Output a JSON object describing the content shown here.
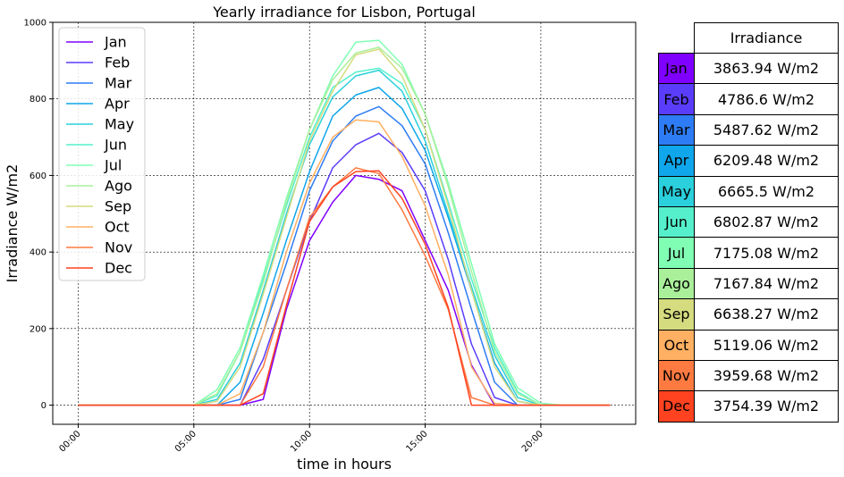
{
  "chart_data": {
    "type": "line",
    "title": "Yearly irradiance for Lisbon, Portugal",
    "xlabel": "time in hours",
    "ylabel": "Irradiance W/m2",
    "x": [
      0,
      1,
      2,
      3,
      4,
      5,
      6,
      7,
      8,
      9,
      10,
      11,
      12,
      13,
      14,
      15,
      16,
      17,
      18,
      19,
      20,
      21,
      22,
      23
    ],
    "xticks": [
      0,
      5,
      10,
      15,
      20
    ],
    "xtick_labels": [
      "00:00",
      "05:00",
      "10:00",
      "15:00",
      "20:00"
    ],
    "xlim": [
      -1.1,
      24.1
    ],
    "ylim": [
      -50,
      1000
    ],
    "yticks": [
      0,
      200,
      400,
      600,
      800,
      1000
    ],
    "grid": true,
    "legend": "upper-left",
    "series": [
      {
        "name": "Jan",
        "color": "#8000ff",
        "values": [
          0,
          0,
          0,
          0,
          0,
          0,
          0,
          0,
          15,
          250,
          430,
          530,
          600,
          590,
          560,
          430,
          300,
          105,
          0,
          0,
          0,
          0,
          0,
          0
        ]
      },
      {
        "name": "Feb",
        "color": "#5a3cfb",
        "values": [
          0,
          0,
          0,
          0,
          0,
          0,
          0,
          0,
          120,
          300,
          480,
          620,
          680,
          710,
          660,
          560,
          380,
          160,
          20,
          0,
          0,
          0,
          0,
          0
        ]
      },
      {
        "name": "Mar",
        "color": "#2e7cf5",
        "values": [
          0,
          0,
          0,
          0,
          0,
          0,
          0,
          15,
          190,
          370,
          560,
          690,
          755,
          780,
          730,
          630,
          450,
          250,
          60,
          0,
          0,
          0,
          0,
          0
        ]
      },
      {
        "name": "Apr",
        "color": "#0fa6eb",
        "values": [
          0,
          0,
          0,
          0,
          0,
          0,
          0,
          60,
          240,
          430,
          610,
          755,
          810,
          830,
          775,
          665,
          490,
          300,
          110,
          10,
          0,
          0,
          0,
          0
        ]
      },
      {
        "name": "May",
        "color": "#2ad0dc",
        "values": [
          0,
          0,
          0,
          0,
          0,
          0,
          15,
          110,
          300,
          500,
          680,
          805,
          860,
          875,
          820,
          690,
          500,
          310,
          130,
          20,
          0,
          0,
          0,
          0
        ]
      },
      {
        "name": "Jun",
        "color": "#55f0cb",
        "values": [
          0,
          0,
          0,
          0,
          0,
          0,
          25,
          140,
          330,
          520,
          700,
          830,
          870,
          880,
          840,
          720,
          530,
          330,
          150,
          35,
          0,
          0,
          0,
          0
        ]
      },
      {
        "name": "Jul",
        "color": "#80ffb4",
        "values": [
          0,
          0,
          0,
          0,
          0,
          0,
          40,
          150,
          340,
          540,
          720,
          860,
          948,
          953,
          890,
          760,
          580,
          370,
          160,
          45,
          5,
          0,
          0,
          0
        ]
      },
      {
        "name": "Ago",
        "color": "#aaf09b",
        "values": [
          0,
          0,
          0,
          0,
          0,
          0,
          30,
          140,
          320,
          530,
          720,
          850,
          920,
          935,
          880,
          760,
          570,
          350,
          140,
          30,
          0,
          0,
          0,
          0
        ]
      },
      {
        "name": "Sep",
        "color": "#d4dc7f",
        "values": [
          0,
          0,
          0,
          0,
          0,
          0,
          10,
          100,
          290,
          490,
          690,
          820,
          915,
          930,
          860,
          720,
          520,
          300,
          100,
          10,
          0,
          0,
          0,
          0
        ]
      },
      {
        "name": "Oct",
        "color": "#ffb062",
        "values": [
          0,
          0,
          0,
          0,
          0,
          0,
          0,
          30,
          190,
          400,
          580,
          700,
          745,
          740,
          650,
          520,
          340,
          100,
          5,
          0,
          0,
          0,
          0,
          0
        ]
      },
      {
        "name": "Nov",
        "color": "#ff7a41",
        "values": [
          0,
          0,
          0,
          0,
          0,
          0,
          0,
          0,
          100,
          300,
          490,
          570,
          620,
          605,
          510,
          390,
          250,
          20,
          0,
          0,
          0,
          0,
          0,
          0
        ]
      },
      {
        "name": "Dec",
        "color": "#ff4220",
        "values": [
          0,
          0,
          0,
          0,
          0,
          0,
          0,
          0,
          30,
          260,
          480,
          570,
          610,
          612,
          540,
          420,
          255,
          0,
          0,
          0,
          0,
          0,
          0,
          0
        ]
      }
    ]
  },
  "table": {
    "header": "Irradiance",
    "rows": [
      {
        "month": "Jan",
        "value": "3863.94 W/m2",
        "color": "#8000ff"
      },
      {
        "month": "Feb",
        "value": "4786.6 W/m2",
        "color": "#5a3cfb"
      },
      {
        "month": "Mar",
        "value": "5487.62 W/m2",
        "color": "#2e7cf5"
      },
      {
        "month": "Apr",
        "value": "6209.48 W/m2",
        "color": "#0fa6eb"
      },
      {
        "month": "May",
        "value": "6665.5 W/m2",
        "color": "#2ad0dc"
      },
      {
        "month": "Jun",
        "value": "6802.87 W/m2",
        "color": "#55f0cb"
      },
      {
        "month": "Jul",
        "value": "7175.08 W/m2",
        "color": "#80ffb4"
      },
      {
        "month": "Ago",
        "value": "7167.84 W/m2",
        "color": "#aaf09b"
      },
      {
        "month": "Sep",
        "value": "6638.27 W/m2",
        "color": "#d4dc7f"
      },
      {
        "month": "Oct",
        "value": "5119.06 W/m2",
        "color": "#ffb062"
      },
      {
        "month": "Nov",
        "value": "3959.68 W/m2",
        "color": "#ff7a41"
      },
      {
        "month": "Dec",
        "value": "3754.39 W/m2",
        "color": "#ff4220"
      }
    ]
  }
}
